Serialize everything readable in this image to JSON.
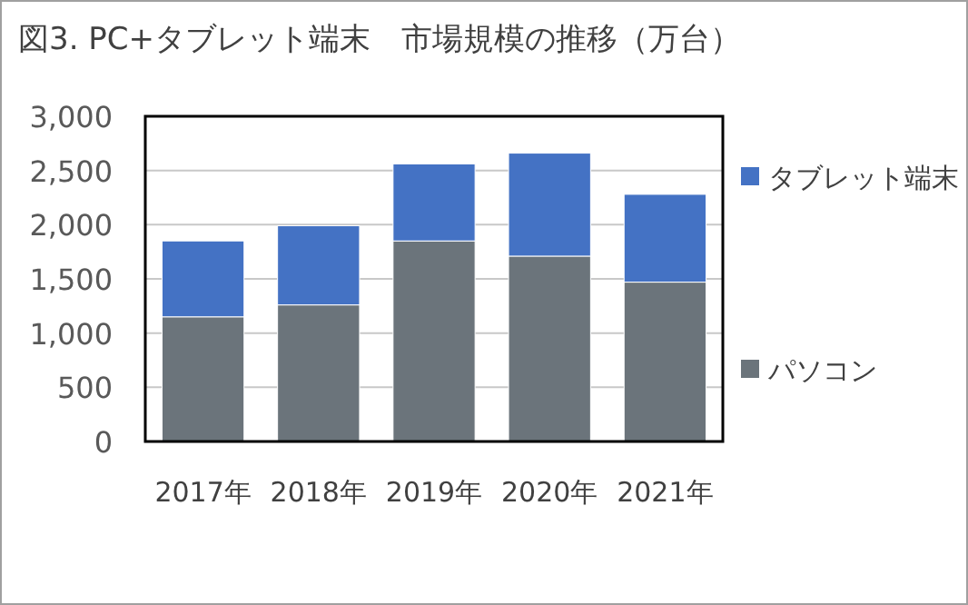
{
  "chart_data": {
    "type": "bar",
    "title": "図3. PC+タブレット端末　市場規模の推移（万台）",
    "categories": [
      "2017年",
      "2018年",
      "2019年",
      "2020年",
      "2021年"
    ],
    "stacked": true,
    "series": [
      {
        "name": "パソコン",
        "color": "#6b747b",
        "values": [
          1150,
          1260,
          1850,
          1710,
          1470
        ]
      },
      {
        "name": "タブレット端末",
        "color": "#4472c4",
        "values": [
          700,
          730,
          710,
          950,
          810
        ]
      }
    ],
    "ylim": [
      0,
      3000
    ],
    "yticks": [
      {
        "value": 0,
        "label": "0"
      },
      {
        "value": 500,
        "label": "500"
      },
      {
        "value": 1000,
        "label": "1,000"
      },
      {
        "value": 1500,
        "label": "1,500"
      },
      {
        "value": 2000,
        "label": "2,000"
      },
      {
        "value": 2500,
        "label": "2,500"
      },
      {
        "value": 3000,
        "label": "3,000"
      }
    ],
    "grid": "y",
    "legend": "right"
  }
}
